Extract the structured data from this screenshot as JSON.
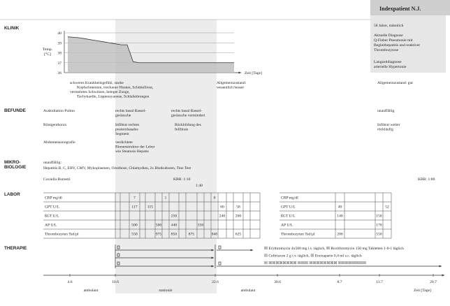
{
  "patient": {
    "title": "Indexpatient N.J.",
    "age": "58 Jahre, männlich",
    "current_diagnosis_label": "Aktuelle Diagnose",
    "current_diagnosis": [
      "Q-Fieber Pneumonie mit",
      "Begleithepatitis und reaktiver",
      "Thrombozytose"
    ],
    "longterm_label": "Langzeitdiagnose",
    "longterm": "arterielle Hypertonie"
  },
  "klinik": {
    "heading": "KLINIK",
    "y_label": [
      "Temp.",
      "[°C]"
    ],
    "x_label": "Zeit [Tage]",
    "ylim": [
      36,
      40
    ],
    "yticks": [
      36,
      37,
      38,
      39,
      40
    ],
    "temperature": [
      39.6,
      39.55,
      39.5,
      39.4,
      39.3,
      39.2,
      39.1,
      39.0,
      38.9,
      38.8,
      38.8,
      37.1,
      37.0,
      37.0,
      37.0,
      37.0,
      37.0,
      37.0,
      37.0,
      37.0,
      37.0,
      37.0,
      37.0,
      37.0,
      37.0,
      37.0,
      37.0,
      37.0,
      37.0
    ],
    "notes": [
      [
        "schweres Krankheitsgefühl, starke",
        "Kopfschmerzen, trockener Husten, Schüttelfrost,",
        "vermehrtes Schwitzen, belegte Zunge,",
        "Tachykardie, Lippenzyanose, Schlafstörungen"
      ],
      [
        "Allgemeinzustand:",
        "wesentlich besser"
      ],
      [
        "Allgemeinzustand: gut"
      ]
    ]
  },
  "befunde": {
    "heading": "BEFUNDE",
    "rows": [
      {
        "label": "Auskultation Pulmo",
        "entries": [
          [
            "rechts basal Rassel-",
            "geräusche"
          ],
          [
            "rechts basal Rassel-",
            "geräusche vermindert"
          ],
          [
            "unauffällig"
          ]
        ]
      },
      {
        "label": "Röntgenthorax",
        "entries": [
          [
            "Infiltrat rechtes",
            "posterobasales",
            "Segment"
          ],
          [
            "Rückbildung des",
            "Infiltrats"
          ],
          [
            "Infiltrat weiter",
            "rückläufig"
          ]
        ]
      },
      {
        "label": "Abdomensonografie",
        "entries": [
          [
            "verdichtete",
            "Binnenstruktur der Leber",
            "wie Steatosis Hepatis"
          ]
        ]
      }
    ]
  },
  "mikrobiologie": {
    "heading": [
      "MIKRO-",
      "BIOLOGIE"
    ],
    "normal_label": "unauffällig:",
    "normal": "Hepatitis B, C, EBV, CMV, Mykoplasmen, Ornithose, Chlamydien, 2x Blutkulturen, Tine Test",
    "pathogen": "Coxiella Burnetii",
    "kbr": [
      "KBR: 1:10",
      "1:40",
      "KBR: 1:80"
    ]
  },
  "labor": {
    "heading": "LABOR",
    "tables": [
      {
        "rows": [
          {
            "label": "CRP mg/dl",
            "values": [
              null,
              null,
              7,
              null,
              null,
              null,
              1,
              null,
              null,
              null,
              null,
              null,
              0,
              null,
              null,
              null,
              null,
              null
            ]
          },
          {
            "label": "GPT U/L",
            "values": [
              null,
              null,
              117,
              null,
              115,
              null,
              null,
              null,
              null,
              null,
              null,
              null,
              null,
              60,
              null,
              58,
              null,
              null
            ]
          },
          {
            "label": "ßGT U/L",
            "values": [
              null,
              null,
              null,
              null,
              null,
              null,
              null,
              250,
              null,
              null,
              null,
              null,
              null,
              240,
              null,
              200,
              null,
              null
            ]
          },
          {
            "label": "AP U/L",
            "values": [
              null,
              null,
              500,
              null,
              null,
              500,
              null,
              440,
              null,
              null,
              350,
              null,
              null,
              null,
              null,
              null,
              null,
              null
            ]
          },
          {
            "label": "Thrombozyten Tsd/µl",
            "values": [
              null,
              null,
              550,
              null,
              null,
              975,
              null,
              850,
              null,
              875,
              null,
              null,
              840,
              null,
              null,
              625,
              null,
              null
            ]
          }
        ]
      },
      {
        "rows": [
          {
            "label": "CRP mg/dl",
            "values": [
              null,
              null,
              null,
              null
            ]
          },
          {
            "label": "GPT U/L",
            "values": [
              40,
              null,
              null,
              52
            ]
          },
          {
            "label": "ßGT U/L",
            "values": [
              140,
              null,
              150,
              null
            ]
          },
          {
            "label": "AP U/L",
            "values": [
              null,
              null,
              170,
              null
            ]
          },
          {
            "label": "Thrombozyten Tsd/µl",
            "values": [
              200,
              null,
              550,
              null
            ]
          }
        ]
      }
    ]
  },
  "therapie": {
    "heading": "THERAPIE",
    "lines": [
      "☒ Erythromycin 4x500 mg i.v. täglich, ☒ Roxithromycin 150 mg Tabletten 1-0-1 täglich",
      "☒ Ceftriaxon 2 g i.v. täglich, ☒ Enoxaparin 0,4 ml s.c. täglich",
      "☒ ☒☒☒☒☒☒☒☒ ☒☒☒ ☒☒☒☒☒☒☒☒ ☒☒☒☒☒☒☒☒"
    ]
  },
  "timeline": {
    "dates": [
      "4.6",
      "10.6",
      "22.6",
      "30.6",
      "8.7",
      "13.7",
      "20.7"
    ],
    "phases": [
      "ambulant",
      "stationär",
      "ambulant"
    ],
    "label": "Zeit [Tage]"
  }
}
